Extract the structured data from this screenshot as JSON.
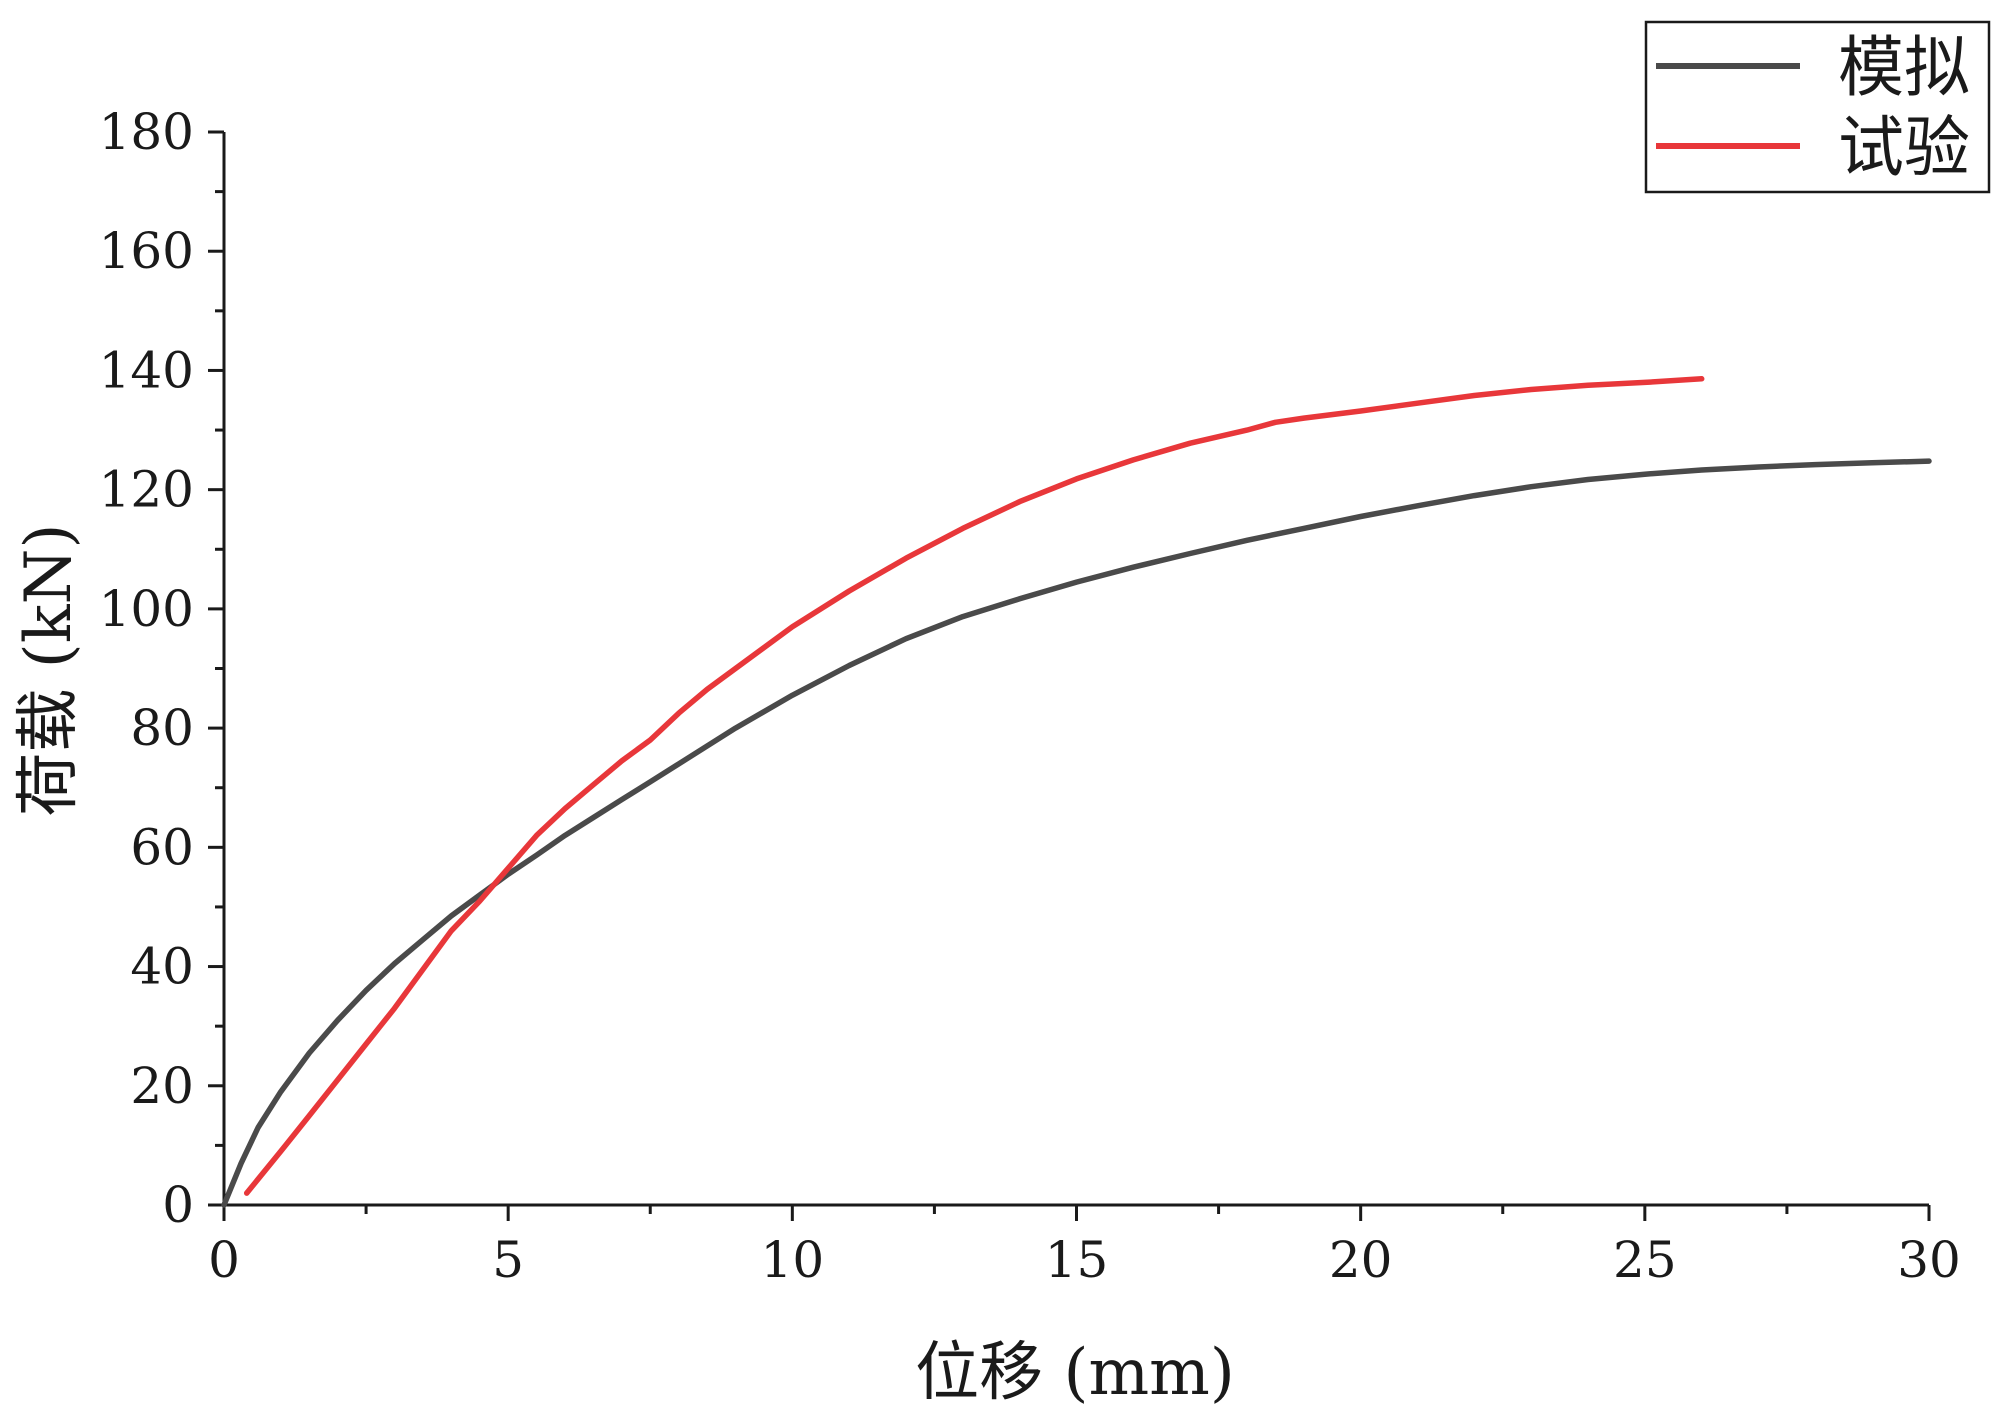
{
  "chart_data": {
    "type": "line",
    "xlabel": "位移 (mm)",
    "ylabel": "荷载 (kN)",
    "xlim": [
      0,
      30
    ],
    "ylim": [
      0,
      180
    ],
    "x_ticks": [
      0,
      5,
      10,
      15,
      20,
      25,
      30
    ],
    "y_ticks": [
      0,
      20,
      40,
      60,
      80,
      100,
      120,
      140,
      160,
      180
    ],
    "grid": false,
    "legend_position": "top-right",
    "series": [
      {
        "name": "模拟",
        "color": "#4a4a4a",
        "x": [
          0,
          0.3,
          0.6,
          1,
          1.5,
          2,
          2.5,
          3,
          3.5,
          4,
          4.5,
          5,
          5.5,
          6,
          6.5,
          7,
          7.5,
          8,
          9,
          10,
          11,
          12,
          13,
          14,
          15,
          16,
          17,
          18,
          19,
          20,
          21,
          22,
          23,
          24,
          25,
          26,
          27,
          28,
          29,
          30
        ],
        "y": [
          0,
          7,
          13,
          19,
          25.5,
          31,
          36,
          40.5,
          44.5,
          48.5,
          52,
          55.5,
          58.7,
          62,
          65,
          68,
          71,
          74,
          80,
          85.5,
          90.5,
          95,
          98.7,
          101.7,
          104.5,
          107,
          109.3,
          111.5,
          113.5,
          115.5,
          117.3,
          119,
          120.5,
          121.7,
          122.6,
          123.3,
          123.8,
          124.2,
          124.5,
          124.8
        ]
      },
      {
        "name": "试验",
        "color": "#e8373a",
        "x": [
          0.4,
          1,
          1.5,
          2,
          2.5,
          3,
          3.5,
          4,
          4.5,
          5,
          5.5,
          6,
          6.5,
          7,
          7.5,
          8,
          8.5,
          9,
          10,
          11,
          12,
          13,
          14,
          15,
          16,
          17,
          18,
          18.5,
          19,
          20,
          21,
          22,
          23,
          24,
          25,
          26
        ],
        "y": [
          2,
          9,
          15,
          21,
          27,
          33,
          39.5,
          46,
          51,
          56.5,
          62,
          66.5,
          70.5,
          74.5,
          78,
          82.5,
          86.5,
          90,
          97,
          103,
          108.5,
          113.5,
          118,
          121.8,
          125,
          127.8,
          130,
          131.3,
          132,
          133.2,
          134.5,
          135.8,
          136.8,
          137.5,
          138,
          138.6
        ]
      }
    ]
  }
}
